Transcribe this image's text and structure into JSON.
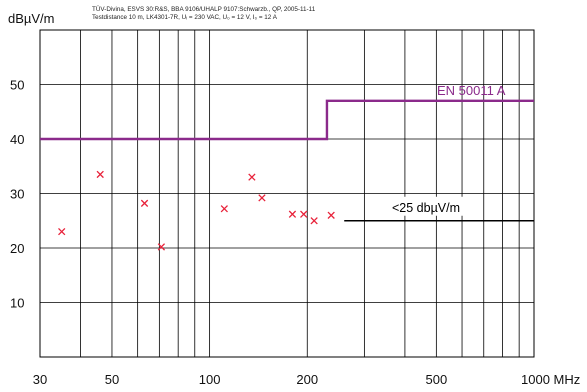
{
  "chart_data": {
    "type": "scatter",
    "title": "",
    "header_line1": "TÜV-Divina, ESVS 30:R&S, BBA 9106/UHALP 9107:Schwarzb., QP, 2005-11-11",
    "header_line2": "Testdistance 10 m, LK4301-7R, Uᵢ = 230 VAC, U₀ = 12 V, I₀ = 12 A",
    "ylabel": "dBµV/m",
    "xunit": "MHz",
    "x_scale": "log",
    "xlim": [
      30,
      1000
    ],
    "ylim": [
      0,
      60
    ],
    "x_ticks": [
      {
        "value": 30,
        "label": "30"
      },
      {
        "value": 50,
        "label": "50"
      },
      {
        "value": 100,
        "label": "100"
      },
      {
        "value": 200,
        "label": "200"
      },
      {
        "value": 500,
        "label": "500"
      },
      {
        "value": 1000,
        "label": "1000 MHz"
      }
    ],
    "y_ticks": [
      10,
      20,
      30,
      40,
      50
    ],
    "grid": true,
    "limit_line": {
      "name": "EN 50011 A",
      "color": "#8b2a8b",
      "segments": [
        {
          "x": [
            30,
            230
          ],
          "y": 40
        },
        {
          "x": [
            230,
            1000
          ],
          "y": 47
        }
      ]
    },
    "noise_floor": {
      "label": "<25 dbµV/m",
      "x": [
        260,
        1000
      ],
      "y": 25
    },
    "series": [
      {
        "marker": "x",
        "color": "#e8223a",
        "points": [
          {
            "x": 35,
            "y": 23
          },
          {
            "x": 46,
            "y": 33.5
          },
          {
            "x": 63,
            "y": 28.2
          },
          {
            "x": 71,
            "y": 20.2
          },
          {
            "x": 111,
            "y": 27.2
          },
          {
            "x": 135,
            "y": 33
          },
          {
            "x": 145,
            "y": 29.2
          },
          {
            "x": 180,
            "y": 26.2
          },
          {
            "x": 195,
            "y": 26.2
          },
          {
            "x": 210,
            "y": 25
          },
          {
            "x": 237,
            "y": 26
          }
        ]
      }
    ]
  }
}
